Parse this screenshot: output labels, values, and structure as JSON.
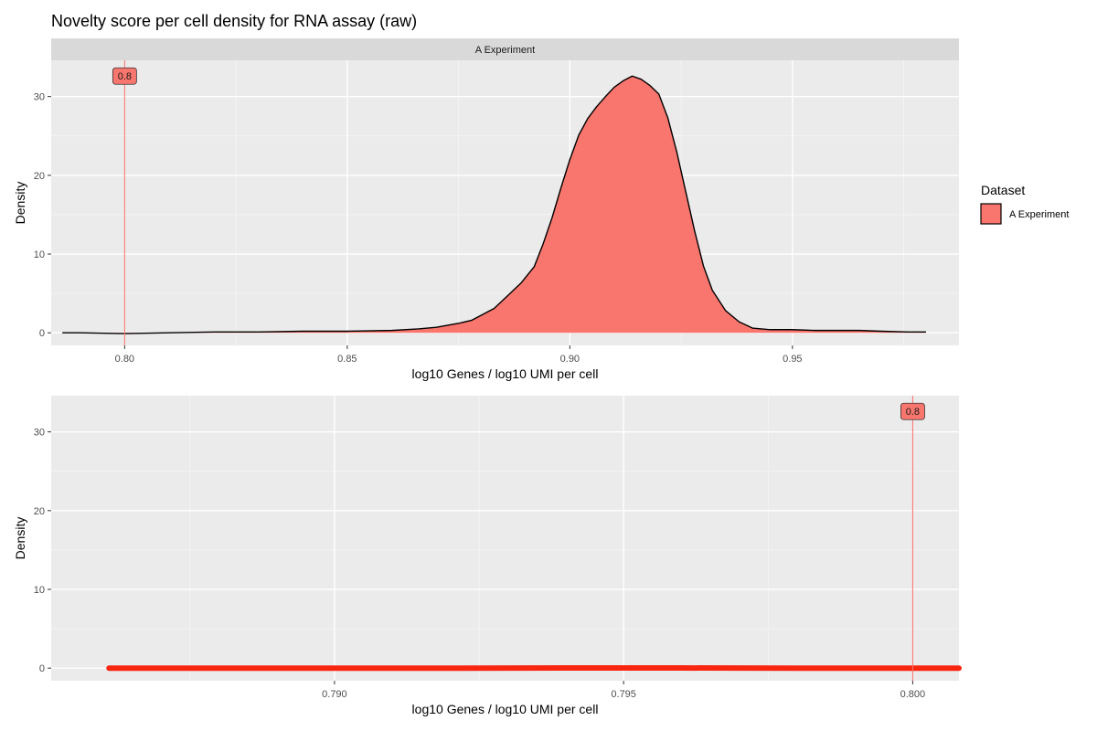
{
  "chart_data": [
    {
      "type": "area",
      "title": "Novelty score per cell density for RNA assay (raw)",
      "facet_label": "A Experiment",
      "xlabel": "log10 Genes / log10 UMI per cell",
      "ylabel": "Density",
      "xlim": [
        0.7835,
        0.9874
      ],
      "ylim": [
        -1.6,
        34.6
      ],
      "x_ticks": [
        0.8,
        0.85,
        0.9,
        0.95
      ],
      "x_tick_labels": [
        "0.80",
        "0.85",
        "0.90",
        "0.95"
      ],
      "y_ticks": [
        0,
        10,
        20,
        30
      ],
      "y_tick_labels": [
        "0",
        "10",
        "20",
        "30"
      ],
      "grid": true,
      "fill_color": "#F8766D",
      "threshold_line": {
        "x": 0.8,
        "label": "0.8",
        "color": "#F8766D"
      },
      "series": [
        {
          "name": "A Experiment",
          "x": [
            0.786,
            0.79,
            0.8,
            0.81,
            0.82,
            0.83,
            0.84,
            0.85,
            0.86,
            0.866,
            0.87,
            0.875,
            0.878,
            0.88,
            0.883,
            0.886,
            0.889,
            0.892,
            0.894,
            0.896,
            0.898,
            0.9,
            0.902,
            0.904,
            0.906,
            0.908,
            0.91,
            0.912,
            0.914,
            0.916,
            0.918,
            0.92,
            0.922,
            0.924,
            0.926,
            0.928,
            0.93,
            0.932,
            0.935,
            0.938,
            0.941,
            0.945,
            0.95,
            0.955,
            0.96,
            0.965,
            0.97,
            0.976,
            0.98
          ],
          "y": [
            0.0,
            0.0,
            -0.1,
            0.0,
            0.1,
            0.1,
            0.2,
            0.2,
            0.3,
            0.5,
            0.7,
            1.2,
            1.6,
            2.2,
            3.1,
            4.7,
            6.3,
            8.4,
            11.3,
            14.6,
            18.4,
            22.0,
            25.1,
            27.2,
            28.7,
            30.0,
            31.2,
            32.0,
            32.6,
            32.2,
            31.4,
            30.3,
            27.3,
            23.0,
            18.0,
            13.0,
            8.5,
            5.4,
            2.8,
            1.4,
            0.6,
            0.4,
            0.4,
            0.3,
            0.3,
            0.3,
            0.2,
            0.1,
            0.1
          ]
        }
      ]
    },
    {
      "type": "line",
      "facet_label": "",
      "xlabel": "log10 Genes / log10 UMI per cell",
      "ylabel": "Density",
      "xlim": [
        0.7851,
        0.8008
      ],
      "ylim": [
        -1.6,
        34.6
      ],
      "x_ticks": [
        0.79,
        0.795,
        0.8
      ],
      "x_tick_labels": [
        "0.790",
        "0.795",
        "0.800"
      ],
      "y_ticks": [
        0,
        10,
        20,
        30
      ],
      "y_tick_labels": [
        "0",
        "10",
        "20",
        "30"
      ],
      "grid": true,
      "line_color": "#F8250F",
      "threshold_line": {
        "x": 0.8,
        "label": "0.8",
        "color": "#F8766D"
      },
      "series": [
        {
          "name": "A Experiment",
          "x": [
            0.7861,
            0.788,
            0.79,
            0.792,
            0.794,
            0.796,
            0.798,
            0.8,
            0.8008
          ],
          "y": [
            0.0,
            0.0,
            0.0,
            0.0,
            0.02,
            0.02,
            0.0,
            0.0,
            0.0
          ]
        }
      ]
    }
  ],
  "legend": {
    "title": "Dataset",
    "items": [
      {
        "label": "A Experiment",
        "color": "#F8766D"
      }
    ],
    "placement": "right"
  }
}
